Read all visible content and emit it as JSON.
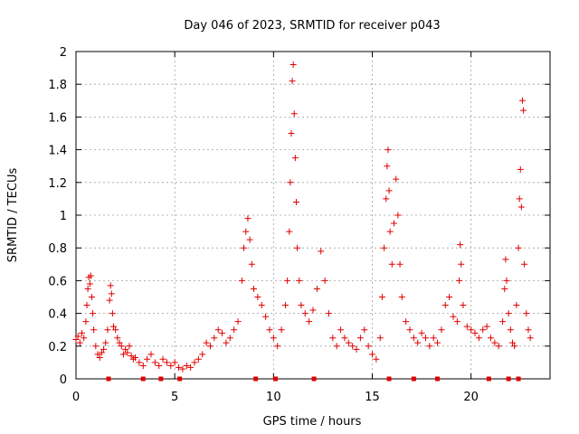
{
  "chart_data": {
    "type": "scatter",
    "title": "Day 046 of 2023, SRMTID for receiver p043",
    "xlabel": "GPS time / hours",
    "ylabel": "SRMTID / TECUs",
    "xlim": [
      0,
      24
    ],
    "ylim": [
      0,
      2
    ],
    "xticks": [
      0,
      5,
      10,
      15,
      20
    ],
    "xtick_labels": [
      "0",
      "5",
      "10",
      "15",
      "20"
    ],
    "yticks": [
      0,
      0.2,
      0.4,
      0.6,
      0.8,
      1,
      1.2,
      1.4,
      1.6,
      1.8,
      2
    ],
    "ytick_labels": [
      "0",
      "0.2",
      "0.4",
      "0.6",
      "0.8",
      "1",
      "1.2",
      "1.4",
      "1.6",
      "1.8",
      "2"
    ],
    "grid": true,
    "marker": "plus",
    "color": "#e00000",
    "series": [
      {
        "name": "SRMTID p043",
        "points": [
          [
            0.0,
            0.24
          ],
          [
            0.1,
            0.26
          ],
          [
            0.2,
            0.22
          ],
          [
            0.3,
            0.28
          ],
          [
            0.4,
            0.25
          ],
          [
            0.5,
            0.35
          ],
          [
            0.55,
            0.45
          ],
          [
            0.6,
            0.55
          ],
          [
            0.65,
            0.62
          ],
          [
            0.7,
            0.58
          ],
          [
            0.75,
            0.63
          ],
          [
            0.8,
            0.5
          ],
          [
            0.85,
            0.4
          ],
          [
            0.9,
            0.3
          ],
          [
            1.0,
            0.2
          ],
          [
            1.1,
            0.15
          ],
          [
            1.2,
            0.13
          ],
          [
            1.3,
            0.16
          ],
          [
            1.4,
            0.18
          ],
          [
            1.5,
            0.22
          ],
          [
            1.6,
            0.3
          ],
          [
            1.7,
            0.48
          ],
          [
            1.75,
            0.57
          ],
          [
            1.8,
            0.52
          ],
          [
            1.85,
            0.4
          ],
          [
            1.9,
            0.32
          ],
          [
            2.0,
            0.3
          ],
          [
            2.1,
            0.25
          ],
          [
            2.2,
            0.22
          ],
          [
            2.3,
            0.2
          ],
          [
            2.4,
            0.15
          ],
          [
            2.5,
            0.18
          ],
          [
            2.6,
            0.16
          ],
          [
            2.7,
            0.2
          ],
          [
            2.8,
            0.14
          ],
          [
            2.9,
            0.12
          ],
          [
            3.0,
            0.13
          ],
          [
            3.2,
            0.1
          ],
          [
            3.4,
            0.08
          ],
          [
            3.6,
            0.12
          ],
          [
            3.8,
            0.15
          ],
          [
            4.0,
            0.1
          ],
          [
            4.2,
            0.08
          ],
          [
            4.4,
            0.12
          ],
          [
            4.6,
            0.1
          ],
          [
            4.8,
            0.08
          ],
          [
            5.0,
            0.1
          ],
          [
            5.2,
            0.07
          ],
          [
            5.4,
            0.06
          ],
          [
            5.6,
            0.08
          ],
          [
            5.8,
            0.07
          ],
          [
            6.0,
            0.1
          ],
          [
            6.2,
            0.12
          ],
          [
            6.4,
            0.15
          ],
          [
            6.6,
            0.22
          ],
          [
            6.8,
            0.2
          ],
          [
            7.0,
            0.25
          ],
          [
            7.2,
            0.3
          ],
          [
            7.4,
            0.28
          ],
          [
            7.6,
            0.22
          ],
          [
            7.8,
            0.25
          ],
          [
            8.0,
            0.3
          ],
          [
            8.2,
            0.35
          ],
          [
            8.4,
            0.6
          ],
          [
            8.5,
            0.8
          ],
          [
            8.6,
            0.9
          ],
          [
            8.7,
            0.98
          ],
          [
            8.8,
            0.85
          ],
          [
            8.9,
            0.7
          ],
          [
            9.0,
            0.55
          ],
          [
            9.2,
            0.5
          ],
          [
            9.4,
            0.45
          ],
          [
            9.6,
            0.38
          ],
          [
            9.8,
            0.3
          ],
          [
            10.0,
            0.25
          ],
          [
            10.2,
            0.2
          ],
          [
            10.4,
            0.3
          ],
          [
            10.6,
            0.45
          ],
          [
            10.7,
            0.6
          ],
          [
            10.8,
            0.9
          ],
          [
            10.85,
            1.2
          ],
          [
            10.9,
            1.5
          ],
          [
            10.95,
            1.82
          ],
          [
            11.0,
            1.92
          ],
          [
            11.05,
            1.62
          ],
          [
            11.1,
            1.35
          ],
          [
            11.15,
            1.08
          ],
          [
            11.2,
            0.8
          ],
          [
            11.3,
            0.6
          ],
          [
            11.4,
            0.45
          ],
          [
            11.6,
            0.4
          ],
          [
            11.8,
            0.35
          ],
          [
            12.0,
            0.42
          ],
          [
            12.2,
            0.55
          ],
          [
            12.4,
            0.78
          ],
          [
            12.6,
            0.6
          ],
          [
            12.8,
            0.4
          ],
          [
            13.0,
            0.25
          ],
          [
            13.2,
            0.2
          ],
          [
            13.4,
            0.3
          ],
          [
            13.6,
            0.25
          ],
          [
            13.8,
            0.22
          ],
          [
            14.0,
            0.2
          ],
          [
            14.2,
            0.18
          ],
          [
            14.4,
            0.25
          ],
          [
            14.6,
            0.3
          ],
          [
            14.8,
            0.2
          ],
          [
            15.0,
            0.15
          ],
          [
            15.2,
            0.12
          ],
          [
            15.4,
            0.25
          ],
          [
            15.5,
            0.5
          ],
          [
            15.6,
            0.8
          ],
          [
            15.7,
            1.1
          ],
          [
            15.75,
            1.3
          ],
          [
            15.8,
            1.4
          ],
          [
            15.85,
            1.15
          ],
          [
            15.9,
            0.9
          ],
          [
            16.0,
            0.7
          ],
          [
            16.1,
            0.95
          ],
          [
            16.2,
            1.22
          ],
          [
            16.3,
            1.0
          ],
          [
            16.4,
            0.7
          ],
          [
            16.5,
            0.5
          ],
          [
            16.7,
            0.35
          ],
          [
            16.9,
            0.3
          ],
          [
            17.1,
            0.25
          ],
          [
            17.3,
            0.22
          ],
          [
            17.5,
            0.28
          ],
          [
            17.7,
            0.25
          ],
          [
            17.9,
            0.2
          ],
          [
            18.1,
            0.25
          ],
          [
            18.3,
            0.22
          ],
          [
            18.5,
            0.3
          ],
          [
            18.7,
            0.45
          ],
          [
            18.9,
            0.5
          ],
          [
            19.1,
            0.38
          ],
          [
            19.3,
            0.35
          ],
          [
            19.4,
            0.6
          ],
          [
            19.45,
            0.82
          ],
          [
            19.5,
            0.7
          ],
          [
            19.6,
            0.45
          ],
          [
            19.8,
            0.32
          ],
          [
            20.0,
            0.3
          ],
          [
            20.2,
            0.28
          ],
          [
            20.4,
            0.25
          ],
          [
            20.6,
            0.3
          ],
          [
            20.8,
            0.32
          ],
          [
            21.0,
            0.25
          ],
          [
            21.2,
            0.22
          ],
          [
            21.4,
            0.2
          ],
          [
            21.6,
            0.35
          ],
          [
            21.7,
            0.55
          ],
          [
            21.75,
            0.73
          ],
          [
            21.8,
            0.6
          ],
          [
            21.9,
            0.4
          ],
          [
            22.0,
            0.3
          ],
          [
            22.1,
            0.22
          ],
          [
            22.2,
            0.2
          ],
          [
            22.3,
            0.45
          ],
          [
            22.4,
            0.8
          ],
          [
            22.45,
            1.1
          ],
          [
            22.5,
            1.28
          ],
          [
            22.55,
            1.05
          ],
          [
            22.6,
            1.7
          ],
          [
            22.65,
            1.64
          ],
          [
            22.7,
            0.7
          ],
          [
            22.8,
            0.4
          ],
          [
            22.9,
            0.3
          ],
          [
            23.0,
            0.25
          ]
        ]
      }
    ],
    "data_gaps": [
      1.65,
      3.4,
      4.3,
      5.25,
      9.1,
      10.1,
      12.05,
      15.85,
      17.1,
      18.3,
      20.9,
      21.9,
      22.4
    ]
  }
}
